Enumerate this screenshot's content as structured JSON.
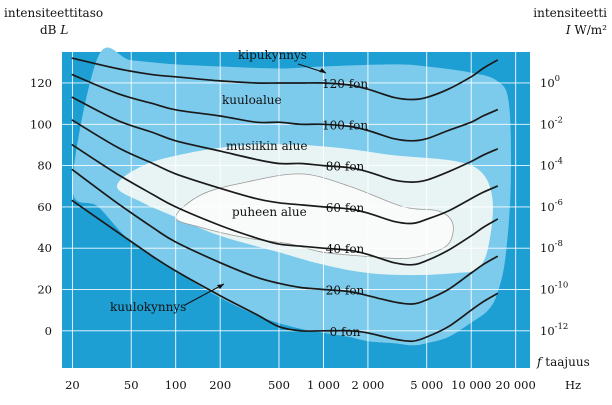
{
  "chart_data": {
    "type": "line",
    "title": "",
    "y_left_title": "intensiteettitaso",
    "y_left_unit": "dB",
    "y_left_symbol": "L",
    "y_right_title": "intensiteetti",
    "y_right_symbol": "I",
    "y_right_unit": "W/m²",
    "x_symbol": "f",
    "x_label": "taajuus",
    "x_unit": "Hz",
    "x_scale": "log",
    "xlim": [
      17,
      25000
    ],
    "ylim": [
      -18,
      135
    ],
    "grid": true,
    "colors": {
      "outer_region": "#1e9fd4",
      "hearing_region": "#7ccbec",
      "music_region": "#e8f4f4",
      "speech_region": "#f8fbfa",
      "curve": "#1a1a1a",
      "grid": "#ffffff"
    },
    "x_ticks": [
      {
        "v": 20,
        "t": "20"
      },
      {
        "v": 50,
        "t": "50"
      },
      {
        "v": 100,
        "t": "100"
      },
      {
        "v": 200,
        "t": "200"
      },
      {
        "v": 500,
        "t": "500"
      },
      {
        "v": 1000,
        "t": "1 000"
      },
      {
        "v": 2000,
        "t": "2 000"
      },
      {
        "v": 5000,
        "t": "5 000"
      },
      {
        "v": 10000,
        "t": "10 000"
      },
      {
        "v": 20000,
        "t": "20 000"
      }
    ],
    "y_ticks": [
      0,
      20,
      40,
      60,
      80,
      100,
      120
    ],
    "y_right_ticks": [
      {
        "v": 0,
        "base": "10",
        "exp": "-12"
      },
      {
        "v": 20,
        "base": "10",
        "exp": "-10"
      },
      {
        "v": 40,
        "base": "10",
        "exp": "-8"
      },
      {
        "v": 60,
        "base": "10",
        "exp": "-6"
      },
      {
        "v": 80,
        "base": "10",
        "exp": "-4"
      },
      {
        "v": 100,
        "base": "10",
        "exp": "-2"
      },
      {
        "v": 120,
        "base": "10",
        "exp": "0"
      }
    ],
    "series": [
      {
        "name": "0 fon",
        "x": [
          20,
          40,
          70,
          100,
          200,
          350,
          500,
          700,
          1000,
          1500,
          2000,
          3000,
          4000,
          5000,
          7000,
          10000,
          12000,
          15000
        ],
        "y": [
          63,
          48,
          36,
          29,
          17,
          8,
          2,
          0,
          0,
          0,
          -1,
          -4,
          -5,
          -3,
          2,
          10,
          14,
          18
        ]
      },
      {
        "name": "20 fon",
        "x": [
          20,
          40,
          70,
          100,
          200,
          350,
          500,
          700,
          1000,
          1500,
          2000,
          3000,
          4000,
          5000,
          7000,
          10000,
          12000,
          15000
        ],
        "y": [
          78,
          62,
          50,
          43,
          33,
          26,
          23,
          21,
          20,
          19,
          17,
          14,
          13,
          15,
          20,
          28,
          32,
          36
        ]
      },
      {
        "name": "40 fon",
        "x": [
          20,
          40,
          70,
          100,
          200,
          350,
          500,
          700,
          1000,
          1500,
          2000,
          3000,
          4000,
          5000,
          7000,
          10000,
          12000,
          15000
        ],
        "y": [
          90,
          76,
          66,
          60,
          51,
          45,
          42,
          41,
          40,
          39,
          37,
          33,
          32,
          34,
          39,
          46,
          50,
          54
        ]
      },
      {
        "name": "60 fon",
        "x": [
          20,
          40,
          70,
          100,
          200,
          350,
          500,
          700,
          1000,
          1500,
          2000,
          3000,
          4000,
          5000,
          7000,
          10000,
          12000,
          15000
        ],
        "y": [
          102,
          89,
          81,
          76,
          69,
          64,
          62,
          61,
          60,
          59,
          57,
          53,
          52,
          54,
          58,
          64,
          67,
          70
        ]
      },
      {
        "name": "80 fon",
        "x": [
          20,
          40,
          70,
          100,
          200,
          350,
          500,
          700,
          1000,
          1500,
          2000,
          3000,
          4000,
          5000,
          7000,
          10000,
          12000,
          15000
        ],
        "y": [
          113,
          102,
          96,
          92,
          87,
          83,
          81,
          81,
          80,
          79,
          77,
          73,
          72,
          73,
          77,
          82,
          85,
          88
        ]
      },
      {
        "name": "100 fon",
        "x": [
          20,
          40,
          70,
          100,
          200,
          350,
          500,
          700,
          1000,
          1500,
          2000,
          3000,
          4000,
          5000,
          7000,
          10000,
          12000,
          15000
        ],
        "y": [
          124,
          115,
          110,
          107,
          104,
          101,
          101,
          100,
          100,
          99,
          97,
          93,
          92,
          93,
          97,
          101,
          104,
          107
        ]
      },
      {
        "name": "120 fon",
        "x": [
          20,
          40,
          70,
          100,
          200,
          350,
          500,
          700,
          1000,
          1500,
          2000,
          3000,
          4000,
          5000,
          7000,
          10000,
          12000,
          15000
        ],
        "y": [
          132,
          127,
          124,
          123,
          121,
          120,
          120,
          120,
          120,
          119,
          117,
          113,
          112,
          113,
          117,
          123,
          127,
          131
        ]
      }
    ],
    "regions": [
      {
        "name": "kuuloalue",
        "x": [
          20,
          30,
          50,
          100,
          200,
          400,
          700,
          1000,
          1500,
          2000,
          3000,
          4000,
          5000,
          7000,
          10000,
          13000,
          15000,
          17000,
          18500,
          18000,
          15000,
          10000,
          5000,
          3000,
          1000,
          500,
          200,
          100,
          50,
          30,
          20
        ],
        "y": [
          70,
          60,
          43,
          29,
          16,
          6,
          1,
          -1,
          -3,
          -5,
          -6,
          -7,
          -6,
          -3,
          4,
          10,
          18,
          35,
          70,
          110,
          121,
          125,
          128,
          129,
          128,
          127,
          128,
          129,
          131,
          133,
          134
        ]
      },
      {
        "name": "musiikin alue",
        "x": [
          40,
          60,
          100,
          200,
          500,
          1000,
          2000,
          4000,
          8000,
          11000,
          13000,
          14000,
          12000,
          8000,
          3000,
          1500,
          700,
          300,
          120,
          60,
          40
        ],
        "y": [
          70,
          62,
          55,
          46,
          38,
          32,
          28,
          27,
          28,
          30,
          40,
          62,
          76,
          82,
          85,
          88,
          90,
          90,
          86,
          80,
          70
        ]
      },
      {
        "name": "puheen alue",
        "x": [
          100,
          150,
          300,
          600,
          1000,
          2000,
          3500,
          5000,
          7000,
          7500,
          6000,
          3500,
          1500,
          700,
          300,
          150,
          100
        ],
        "y": [
          55,
          50,
          45,
          42,
          38,
          36,
          35,
          37,
          42,
          52,
          58,
          60,
          70,
          76,
          72,
          66,
          55
        ]
      }
    ],
    "annotations": {
      "kipukynnys": "kipukynnys",
      "kuuloalue": "kuuloalue",
      "musiikin_alue": "musiikin alue",
      "puheen_alue": "puheen alue",
      "kuulokynnys": "kuulokynnys"
    }
  }
}
